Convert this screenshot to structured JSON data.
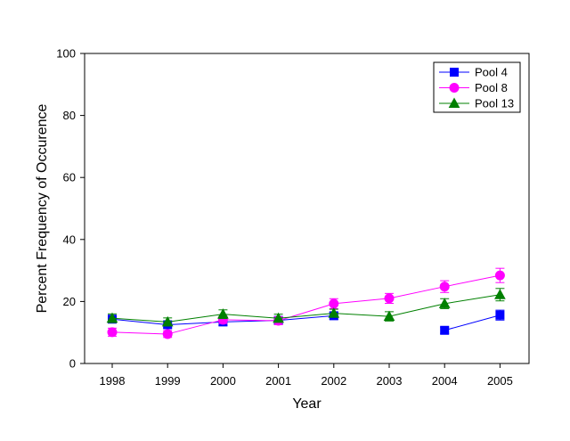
{
  "chart_data": {
    "type": "line",
    "title": "",
    "xlabel": "Year",
    "ylabel": "Percent Frequency of Occurence",
    "categories": [
      "1998",
      "1999",
      "2000",
      "2001",
      "2002",
      "2003",
      "2004",
      "2005"
    ],
    "ylim": [
      0,
      100
    ],
    "yticks": [
      "0",
      "20",
      "40",
      "60",
      "80",
      "100"
    ],
    "grid": false,
    "legend_position": "top-right",
    "series": [
      {
        "name": "Pool 4",
        "color": "#0000ff",
        "marker": "square",
        "values": [
          14.3,
          12.5,
          13.4,
          13.9,
          15.4,
          null,
          10.7,
          15.6
        ],
        "errors": [
          1.2,
          1.0,
          1.2,
          1.0,
          1.1,
          null,
          1.0,
          1.6
        ]
      },
      {
        "name": "Pool 8",
        "color": "#ff00ff",
        "marker": "circle",
        "values": [
          10.1,
          9.5,
          14.1,
          13.8,
          19.3,
          21.0,
          24.8,
          28.4
        ],
        "errors": [
          1.3,
          1.1,
          1.2,
          1.3,
          1.6,
          1.6,
          1.9,
          2.3
        ]
      },
      {
        "name": "Pool 13",
        "color": "#008000",
        "marker": "triangle",
        "values": [
          14.6,
          13.4,
          15.9,
          14.6,
          16.2,
          15.2,
          19.3,
          22.2
        ],
        "errors": [
          1.4,
          1.3,
          1.4,
          1.3,
          1.3,
          1.5,
          1.6,
          2.0
        ]
      }
    ]
  }
}
